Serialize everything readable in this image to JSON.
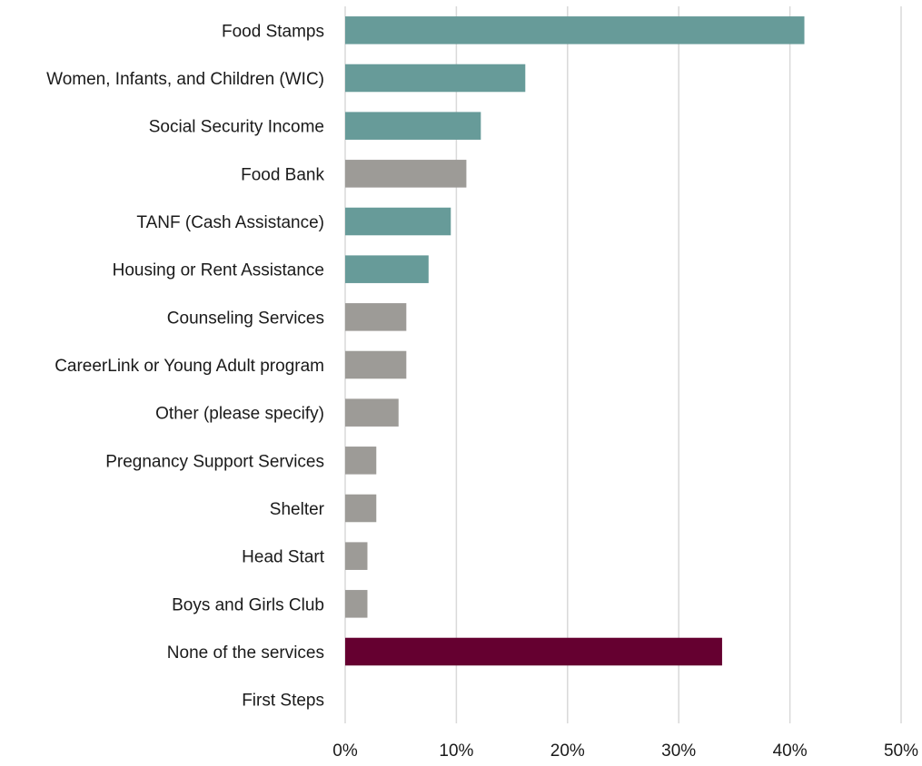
{
  "chart_data": {
    "type": "bar",
    "orientation": "horizontal",
    "categories": [
      "Food Stamps",
      "Women, Infants, and Children (WIC)",
      "Social Security Income",
      "Food Bank",
      "TANF (Cash Assistance)",
      "Housing or Rent Assistance",
      "Counseling Services",
      "CareerLink or Young Adult program",
      "Other (please specify)",
      "Pregnancy Support Services",
      "Shelter",
      "Head Start",
      "Boys and Girls Club",
      "None of the services",
      "First Steps"
    ],
    "values": [
      41.3,
      16.2,
      12.2,
      10.9,
      9.5,
      7.5,
      5.5,
      5.5,
      4.8,
      2.8,
      2.8,
      2.0,
      2.0,
      33.9,
      0
    ],
    "bar_colors": [
      "#679b99",
      "#679b99",
      "#679b99",
      "#9d9b97",
      "#679b99",
      "#679b99",
      "#9d9b97",
      "#9d9b97",
      "#9d9b97",
      "#9d9b97",
      "#9d9b97",
      "#9d9b97",
      "#9d9b97",
      "#650030",
      "#9d9b97"
    ],
    "xlim": [
      0,
      50
    ],
    "xticks": [
      "0%",
      "10%",
      "20%",
      "30%",
      "40%",
      "50%"
    ],
    "grid": true,
    "legend": "none",
    "title": "",
    "xlabel": "",
    "ylabel": ""
  }
}
